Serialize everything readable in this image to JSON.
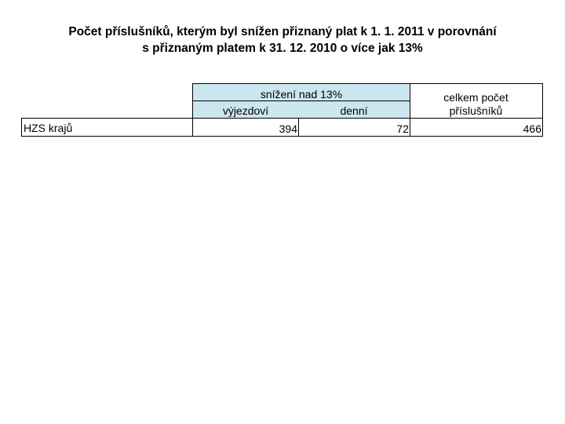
{
  "title": {
    "line1": "Počet příslušníků, kterým byl snížen přiznaný plat k 1. 1. 2011 v porovnání",
    "line2": "s přiznaným platem k 31. 12. 2010 o více jak 13%"
  },
  "table": {
    "header": {
      "group_label": "snížení nad 13%",
      "sub_labels": [
        "výjezdoví",
        "denní"
      ],
      "total_label_line1": "celkem počet",
      "total_label_line2": "příslušníků"
    },
    "rows": [
      {
        "label": "HZS krajů",
        "values": [
          "394",
          "72",
          "466"
        ]
      }
    ]
  },
  "colors": {
    "header_fill": "#cce6f0",
    "border": "#000000"
  }
}
